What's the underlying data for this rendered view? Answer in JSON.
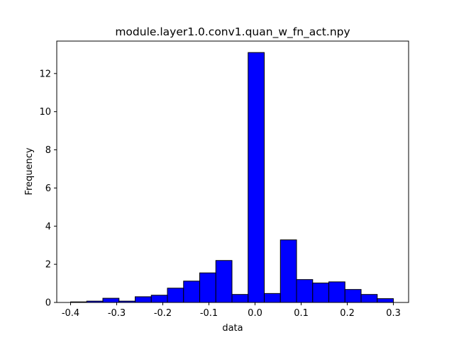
{
  "chart_data": {
    "type": "bar",
    "title": "module.layer1.0.conv1.quan_w_fn_act.npy",
    "xlabel": "data",
    "ylabel": "Frequency",
    "xlim": [
      -0.43,
      0.333
    ],
    "ylim": [
      0,
      13.7
    ],
    "xticks": [
      -0.4,
      -0.3,
      -0.2,
      -0.1,
      0.0,
      0.1,
      0.2,
      0.3
    ],
    "xtick_labels": [
      "-0.4",
      "-0.3",
      "-0.2",
      "-0.1",
      "0.0",
      "0.1",
      "0.2",
      "0.3"
    ],
    "yticks": [
      0,
      2,
      4,
      6,
      8,
      10,
      12
    ],
    "ytick_labels": [
      "0",
      "2",
      "4",
      "6",
      "8",
      "10",
      "12"
    ],
    "bin_edges": [
      -0.4,
      -0.365,
      -0.33,
      -0.295,
      -0.26,
      -0.225,
      -0.19,
      -0.155,
      -0.12,
      -0.085,
      -0.05,
      -0.015,
      0.02,
      0.055,
      0.09,
      0.125,
      0.16,
      0.195,
      0.23,
      0.265,
      0.3
    ],
    "values": [
      0.03,
      0.07,
      0.22,
      0.07,
      0.3,
      0.38,
      0.75,
      1.12,
      1.55,
      2.2,
      0.42,
      13.1,
      0.47,
      3.28,
      1.2,
      1.02,
      1.08,
      0.68,
      0.42,
      0.2
    ],
    "colors": {
      "bar_fill": "#0000ff",
      "bar_edge": "#000000"
    },
    "grid": false,
    "legend": "none"
  }
}
